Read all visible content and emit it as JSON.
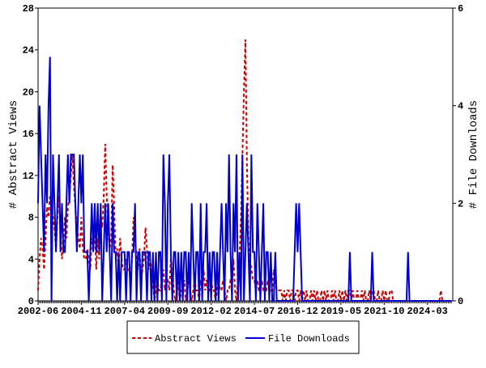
{
  "chart_data": {
    "type": "line",
    "y_label": "# Abstract Views",
    "y2_label": "# File Downloads",
    "categories": [
      "2002-06",
      null,
      null,
      null,
      null,
      null,
      null,
      null,
      null,
      null,
      null,
      null,
      null,
      null,
      null,
      null,
      null,
      null,
      null,
      null,
      null,
      null,
      null,
      null,
      null,
      null,
      null,
      null,
      null,
      "2004-11",
      null,
      null,
      null,
      null,
      null,
      null,
      null,
      null,
      null,
      null,
      null,
      null,
      null,
      null,
      null,
      null,
      null,
      null,
      null,
      null,
      null,
      null,
      null,
      null,
      null,
      null,
      null,
      null,
      "2007-04",
      null,
      null,
      null,
      null,
      null,
      null,
      null,
      null,
      null,
      null,
      null,
      null,
      null,
      null,
      null,
      null,
      null,
      null,
      null,
      null,
      null,
      null,
      null,
      null,
      null,
      null,
      null,
      null,
      "2009-09",
      null,
      null,
      null,
      null,
      null,
      null,
      null,
      null,
      null,
      null,
      null,
      null,
      null,
      null,
      null,
      null,
      null,
      null,
      null,
      null,
      null,
      null,
      null,
      null,
      null,
      null,
      null,
      null,
      "2012-02",
      null,
      null,
      null,
      null,
      null,
      null,
      null,
      null,
      null,
      null,
      null,
      null,
      null,
      null,
      null,
      null,
      null,
      null,
      null,
      null,
      null,
      null,
      null,
      null,
      null,
      null,
      null,
      null,
      "2014-07",
      null,
      null,
      null,
      null,
      null,
      null,
      null,
      null,
      null,
      null,
      null,
      null,
      null,
      null,
      null,
      null,
      null,
      null,
      null,
      null,
      null,
      null,
      null,
      null,
      null,
      null,
      null,
      null,
      "2016-12",
      null,
      null,
      null,
      null,
      null,
      null,
      null,
      null,
      null,
      null,
      null,
      null,
      null,
      null,
      null,
      null,
      null,
      null,
      null,
      null,
      null,
      null,
      null,
      null,
      null,
      null,
      null,
      null,
      "2019-05",
      null,
      null,
      null,
      null,
      null,
      null,
      null,
      null,
      null,
      null,
      null,
      null,
      null,
      null,
      null,
      null,
      null,
      null,
      null,
      null,
      null,
      null,
      null,
      null,
      null,
      null,
      null,
      null,
      "2021-10",
      null,
      null,
      null,
      null,
      null,
      null,
      null,
      null,
      null,
      null,
      null,
      null,
      null,
      null,
      null,
      null,
      null,
      null,
      null,
      null,
      null,
      null,
      null,
      null,
      null,
      null,
      null,
      null,
      "2024-03",
      null,
      null,
      null,
      null,
      null,
      null,
      null,
      null,
      null,
      null,
      null,
      null,
      null,
      null,
      null,
      null
    ],
    "series": [
      {
        "name": "Abstract Views",
        "color": "#cc0000",
        "dashed": true,
        "values": [
          1,
          4,
          6,
          5,
          3,
          6,
          9,
          8,
          10,
          9,
          8,
          7,
          5,
          8,
          10,
          7,
          4,
          5,
          8,
          6,
          9,
          10,
          12,
          14,
          11,
          9,
          7,
          6,
          5,
          8,
          5,
          4,
          4,
          5,
          4,
          3,
          6,
          5,
          7,
          3,
          6,
          4,
          8,
          7,
          10,
          15,
          10,
          7,
          5,
          6,
          13,
          9,
          4,
          5,
          3,
          6,
          4,
          3,
          3,
          4,
          3,
          3,
          2,
          4,
          8,
          6,
          4,
          3,
          5,
          2,
          3,
          4,
          7,
          5,
          3,
          4,
          3,
          2,
          0,
          1,
          2,
          1,
          1,
          2,
          3,
          1,
          2,
          2,
          1,
          4,
          3,
          1,
          0,
          1,
          2,
          0,
          1,
          1,
          2,
          0,
          1,
          2,
          1,
          0,
          1,
          2,
          1,
          1,
          0,
          2,
          1,
          3,
          1,
          2,
          1,
          1,
          2,
          1,
          1,
          0,
          1,
          2,
          1,
          1,
          2,
          1,
          0,
          1,
          1,
          2,
          2,
          4,
          1,
          0,
          2,
          4,
          8,
          14,
          20,
          25,
          13,
          6,
          4,
          3,
          2,
          2,
          1,
          2,
          1,
          1,
          2,
          1,
          1,
          1,
          2,
          1,
          1,
          1,
          3,
          2,
          1,
          1,
          1,
          1,
          0,
          1,
          0,
          1,
          1,
          0,
          1,
          1,
          0,
          1,
          1,
          0,
          1,
          0,
          1,
          0,
          1,
          0,
          0,
          1,
          0,
          1,
          0,
          1,
          0,
          0,
          1,
          0,
          1,
          0,
          1,
          0,
          0,
          1,
          0,
          1,
          0,
          0,
          1,
          0,
          1,
          0,
          1,
          0,
          1,
          1,
          0,
          1,
          0,
          0,
          1,
          0,
          0,
          1,
          0,
          1,
          0,
          0,
          1,
          0,
          1,
          1,
          0,
          0,
          1,
          0,
          0,
          1,
          0,
          1,
          0,
          0,
          1,
          1,
          0,
          0,
          0,
          0,
          0,
          0,
          0,
          0,
          0,
          0,
          0,
          0,
          0,
          0,
          0,
          0,
          0,
          0,
          0,
          0,
          0,
          0,
          0,
          0,
          0,
          0,
          0,
          0,
          0,
          0,
          0,
          0,
          1,
          0,
          0,
          0,
          0,
          0,
          0,
          0
        ]
      },
      {
        "name": "File Downloads",
        "color": "#0000cc",
        "dashed": false,
        "axis": "y2",
        "values": [
          2,
          4,
          3,
          2,
          1,
          3,
          2,
          4,
          5,
          0,
          3,
          2,
          1,
          2,
          3,
          1,
          2,
          1,
          1,
          2,
          3,
          2,
          3,
          3,
          3,
          2,
          1,
          2,
          3,
          2,
          3,
          1,
          1,
          1,
          0,
          1,
          2,
          1,
          2,
          1,
          2,
          1,
          2,
          0,
          1,
          2,
          1,
          2,
          1,
          0,
          2,
          1,
          1,
          0,
          1,
          0,
          1,
          1,
          1,
          0,
          1,
          1,
          0,
          1,
          1,
          2,
          0,
          1,
          1,
          0,
          1,
          1,
          1,
          0,
          1,
          1,
          0,
          1,
          0,
          1,
          0,
          1,
          1,
          0,
          3,
          2,
          0,
          2,
          3,
          1,
          0,
          1,
          1,
          0,
          1,
          0,
          1,
          0,
          1,
          1,
          0,
          1,
          0,
          2,
          1,
          0,
          1,
          1,
          0,
          2,
          0,
          1,
          1,
          2,
          0,
          1,
          0,
          1,
          1,
          0,
          1,
          0,
          1,
          2,
          1,
          0,
          2,
          1,
          3,
          1,
          0,
          2,
          1,
          3,
          0,
          1,
          0,
          3,
          0,
          1,
          2,
          1,
          0,
          3,
          1,
          1,
          0,
          2,
          1,
          0,
          1,
          2,
          0,
          1,
          1,
          0,
          1,
          0,
          0,
          1,
          0,
          0,
          0,
          0,
          0,
          0,
          0,
          0,
          0,
          0,
          0,
          0,
          1,
          2,
          1,
          2,
          1,
          0,
          0,
          0,
          0,
          0,
          0,
          0,
          0,
          0,
          0,
          0,
          0,
          0,
          0,
          0,
          0,
          0,
          0,
          0,
          0,
          0,
          0,
          0,
          0,
          0,
          0,
          0,
          0,
          0,
          0,
          0,
          0,
          1,
          0,
          0,
          0,
          0,
          0,
          0,
          0,
          0,
          0,
          0,
          0,
          0,
          0,
          0,
          1,
          0,
          0,
          0,
          0,
          0,
          0,
          0,
          0,
          0,
          0,
          0,
          0,
          0,
          0,
          0,
          0,
          0,
          0,
          0,
          0,
          0,
          0,
          0,
          1,
          0,
          0,
          0,
          0,
          0,
          0,
          0,
          0,
          0,
          0,
          0,
          0,
          0,
          0,
          0,
          0,
          0,
          0,
          0,
          0,
          0,
          0,
          0,
          0,
          0,
          0,
          0,
          0,
          0
        ]
      }
    ],
    "ylim": [
      0,
      28
    ],
    "yticks": [
      0,
      4,
      8,
      12,
      16,
      20,
      24,
      28
    ],
    "y2lim": [
      0,
      6
    ],
    "y2ticks": [
      0,
      2,
      4,
      6
    ],
    "legend": "bottom"
  }
}
